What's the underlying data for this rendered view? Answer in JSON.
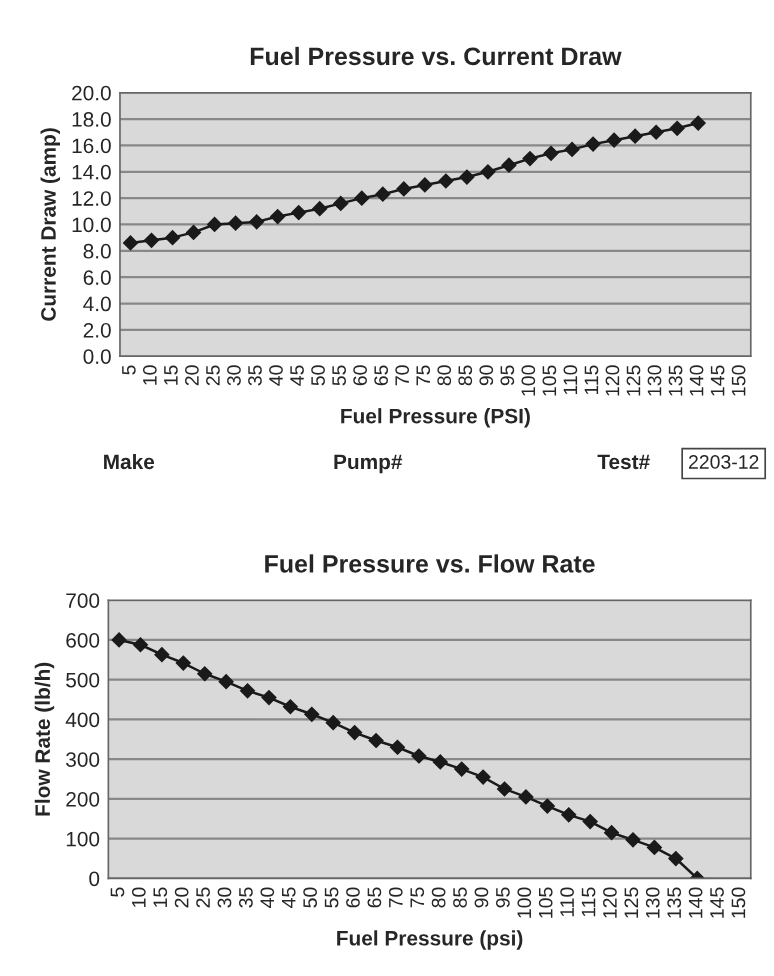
{
  "chart_data": [
    {
      "type": "line",
      "title": "Fuel Pressure vs. Current Draw",
      "xlabel": "Fuel Pressure (PSI)",
      "ylabel": "Current Draw (amp)",
      "categories": [
        "5",
        "10",
        "15",
        "20",
        "25",
        "30",
        "35",
        "40",
        "45",
        "50",
        "55",
        "60",
        "65",
        "70",
        "75",
        "80",
        "85",
        "90",
        "95",
        "100",
        "105",
        "110",
        "115",
        "120",
        "125",
        "130",
        "135",
        "140",
        "145",
        "150"
      ],
      "series": [
        {
          "color": "#1a1a1a",
          "values": [
            8.6,
            8.8,
            9.0,
            9.4,
            10.0,
            10.1,
            10.2,
            10.6,
            10.9,
            11.2,
            11.6,
            12.0,
            12.3,
            12.7,
            13.0,
            13.3,
            13.6,
            14.0,
            14.5,
            15.0,
            15.4,
            15.7,
            16.1,
            16.4,
            16.7,
            17.0,
            17.3,
            17.7,
            null,
            null
          ]
        }
      ],
      "ylim": [
        0,
        20
      ],
      "yticks": [
        {
          "value": 0,
          "label": "0.0"
        },
        {
          "value": 2,
          "label": "2.0"
        },
        {
          "value": 4,
          "label": "4.0"
        },
        {
          "value": 6,
          "label": "6.0"
        },
        {
          "value": 8,
          "label": "8.0"
        },
        {
          "value": 10,
          "label": "10.0"
        },
        {
          "value": 12,
          "label": "12.0"
        },
        {
          "value": 14,
          "label": "14.0"
        },
        {
          "value": 16,
          "label": "16.0"
        },
        {
          "value": 18,
          "label": "18.0"
        },
        {
          "value": 20,
          "label": "20.0"
        }
      ],
      "grid": "y",
      "marker": "diamond",
      "line_style": "solid"
    },
    {
      "type": "other",
      "annotations": [
        "Make",
        "Pump#",
        "Test#",
        "2203-12"
      ]
    },
    {
      "type": "line",
      "title": "Fuel Pressure vs. Flow Rate",
      "xlabel": "Fuel Pressure (psi)",
      "ylabel": "Flow Rate (lb/h)",
      "categories": [
        "5",
        "10",
        "15",
        "20",
        "25",
        "30",
        "35",
        "40",
        "45",
        "50",
        "55",
        "60",
        "65",
        "70",
        "75",
        "80",
        "85",
        "90",
        "95",
        "100",
        "105",
        "110",
        "115",
        "120",
        "125",
        "130",
        "135",
        "140",
        "145",
        "150"
      ],
      "series": [
        {
          "color": "#1a1a1a",
          "values": [
            600,
            588,
            563,
            542,
            515,
            495,
            472,
            455,
            432,
            413,
            392,
            367,
            347,
            330,
            308,
            293,
            275,
            255,
            225,
            205,
            182,
            160,
            143,
            115,
            97,
            78,
            50,
            0,
            null,
            null
          ]
        }
      ],
      "ylim": [
        0,
        700
      ],
      "yticks": [
        0,
        100,
        200,
        300,
        400,
        500,
        600,
        700
      ],
      "grid": "y",
      "marker": "diamond",
      "line_style": "solid"
    }
  ]
}
